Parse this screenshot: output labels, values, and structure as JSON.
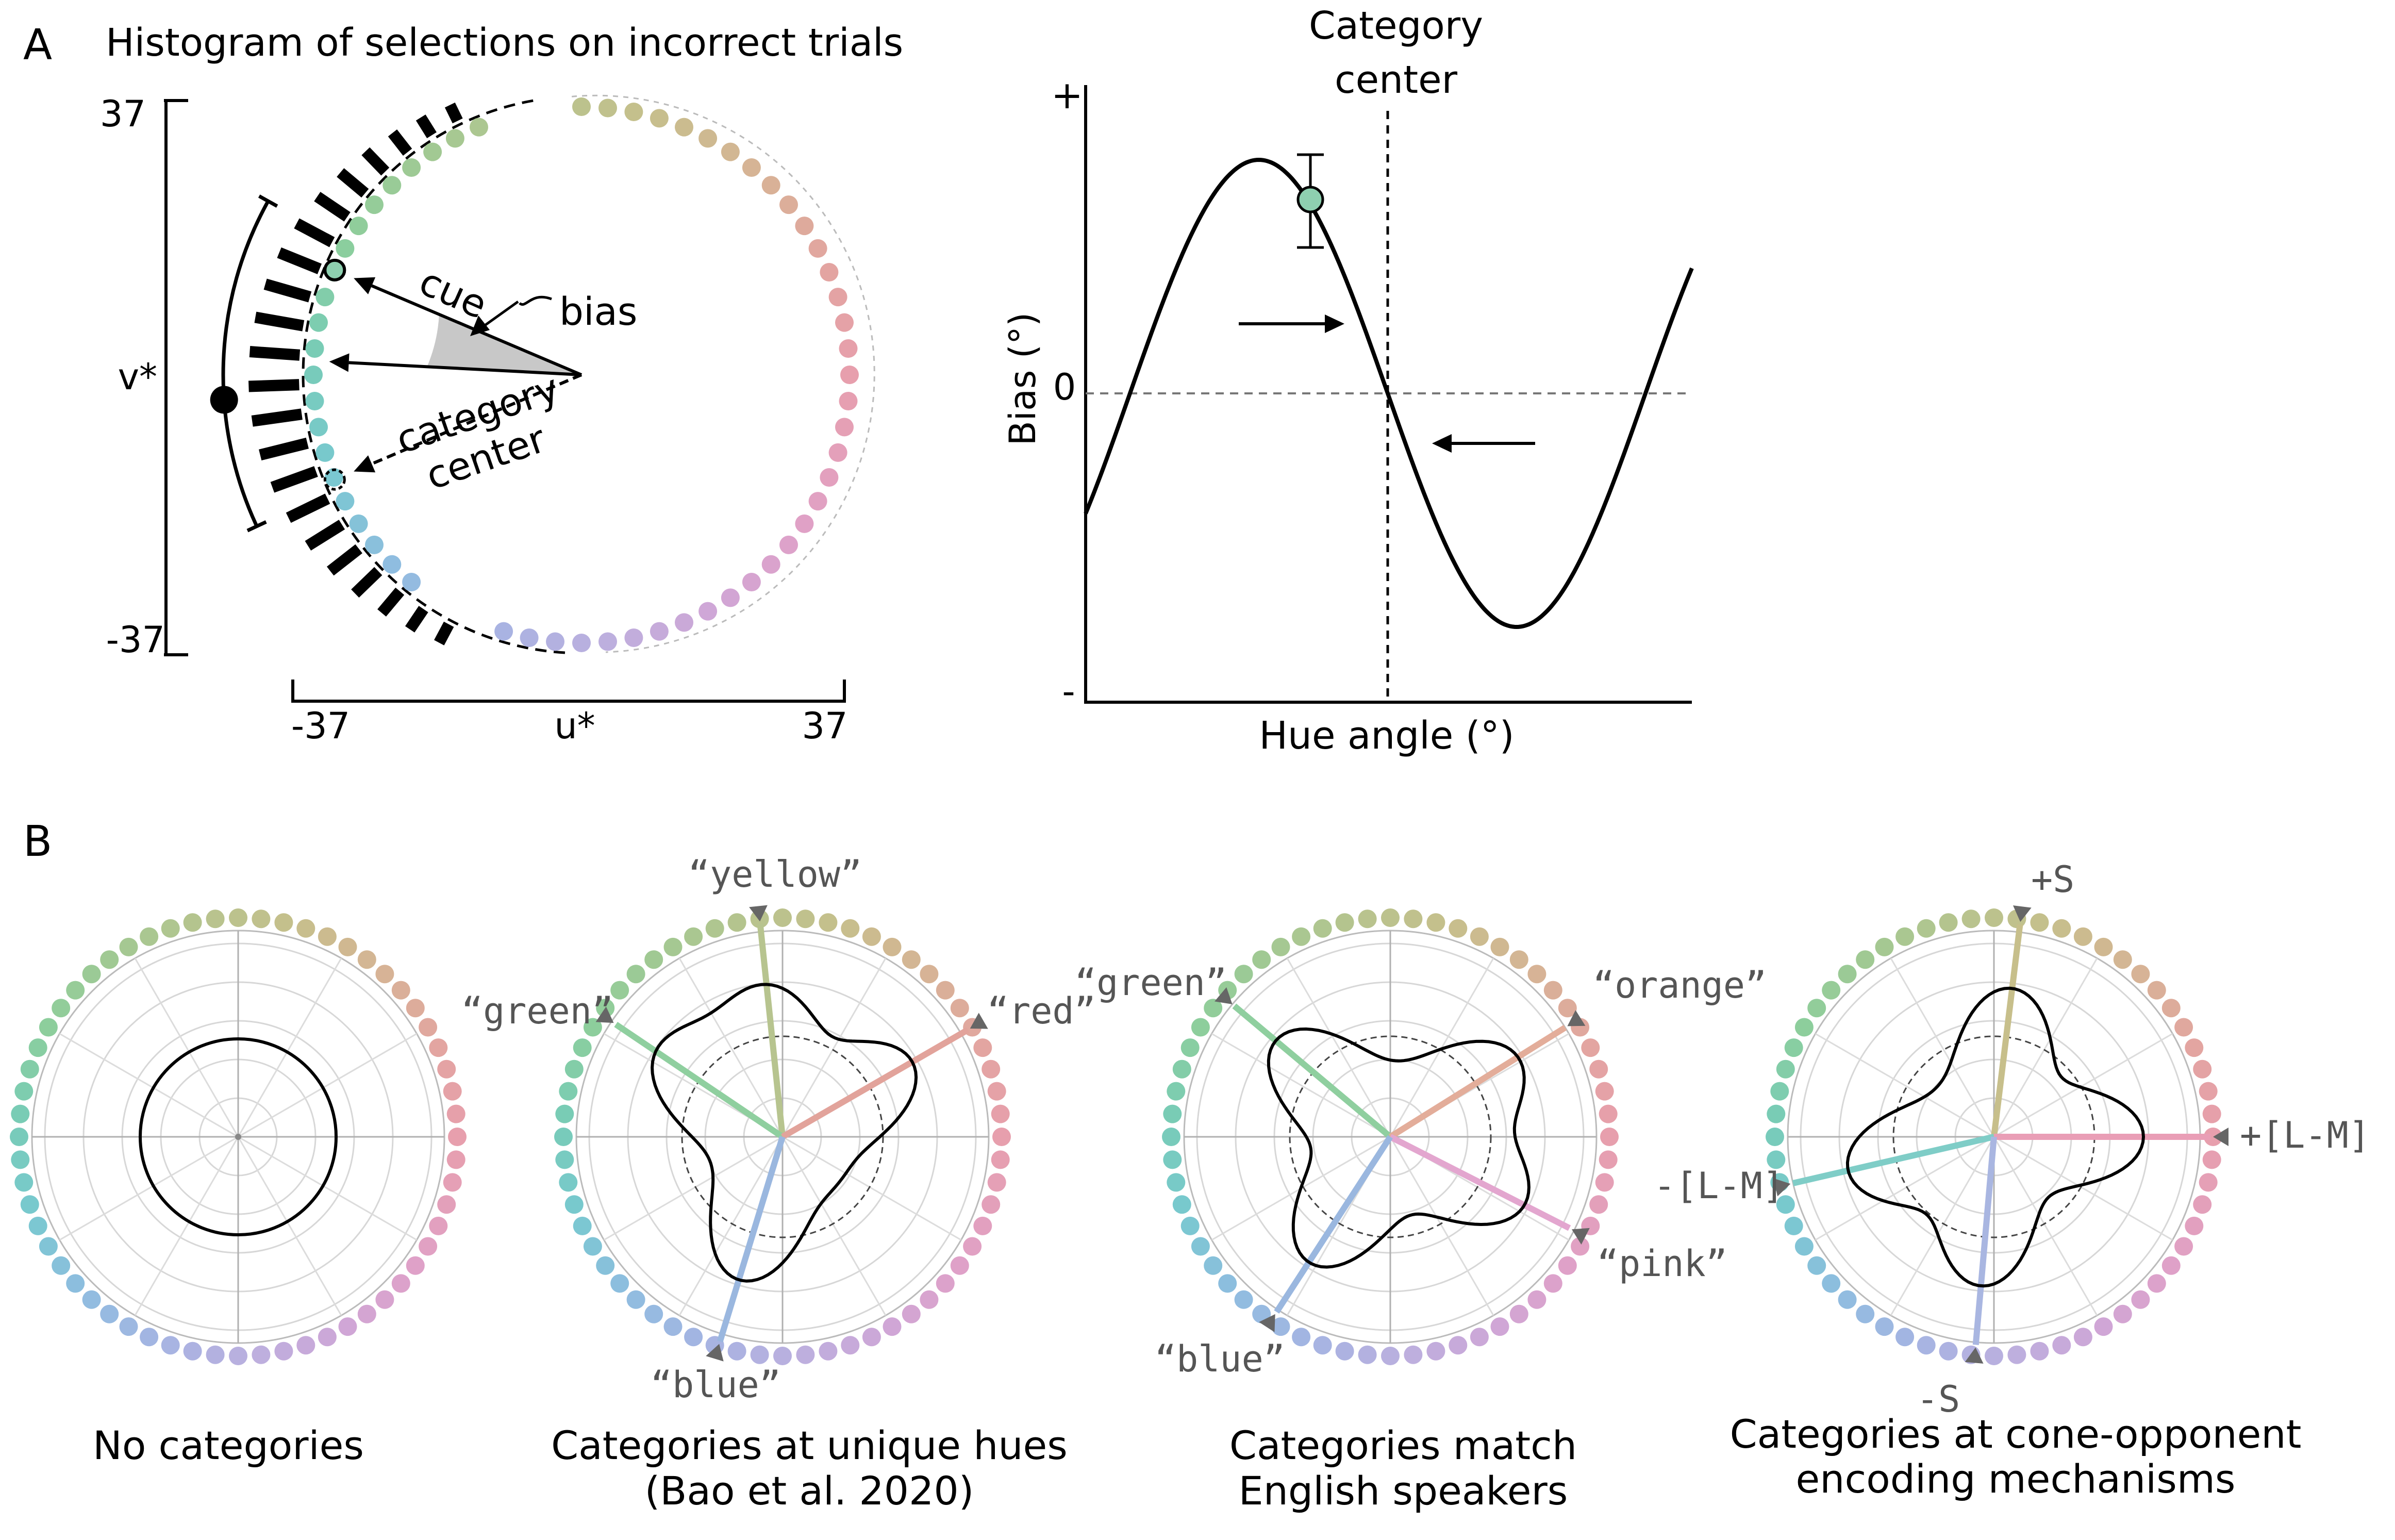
{
  "panel_a": {
    "letter": "A",
    "histogram_title": "Histogram of selections on incorrect trials",
    "v_axis": {
      "label": "v*",
      "top": "37",
      "bottom": "-37"
    },
    "u_axis": {
      "label": "u*",
      "left": "-37",
      "right": "37"
    },
    "cue_label": "cue",
    "bias_label": "bias",
    "category_center_label": [
      "category",
      "center"
    ],
    "bias_plot": {
      "ylabel": "Bias (°)",
      "xlabel": "Hue angle (°)",
      "y_plus": "+",
      "y_zero": "0",
      "y_minus": "-",
      "center_label": [
        "Category",
        "center"
      ]
    }
  },
  "panel_b": {
    "letter": "B",
    "wheels": [
      {
        "caption": [
          "No categories"
        ],
        "labels": []
      },
      {
        "caption": [
          "Categories at unique hues",
          "(Bao et al. 2020)"
        ],
        "labels": [
          "“yellow”",
          "“green”",
          "“red”",
          "“blue”"
        ]
      },
      {
        "caption": [
          "Categories match",
          "English speakers"
        ],
        "labels": [
          "“green”",
          "“orange”",
          "“pink”",
          "“blue”"
        ]
      },
      {
        "caption": [
          "Categories at cone-opponent",
          "encoding mechanisms"
        ],
        "labels": [
          "+S",
          "+[L-M]",
          "-[L-M]",
          "-S"
        ]
      }
    ]
  },
  "colors": {
    "axis": "#000000",
    "annotation_gray": "#555555",
    "grid": "#c8c8c8",
    "cue_dot": "#8ed0b0",
    "category_green": "#8fcf9f",
    "category_yellow": "#b7c48f",
    "category_red": "#e2a39b",
    "category_blue": "#9ab7df",
    "category_orange": "#e3ad9a",
    "category_pink": "#e3a6cf",
    "category_teal": "#7fcdc7",
    "category_lm_pos": "#e99eb6",
    "category_s_pos": "#c7bf8b",
    "category_s_neg": "#a9b6e1"
  }
}
